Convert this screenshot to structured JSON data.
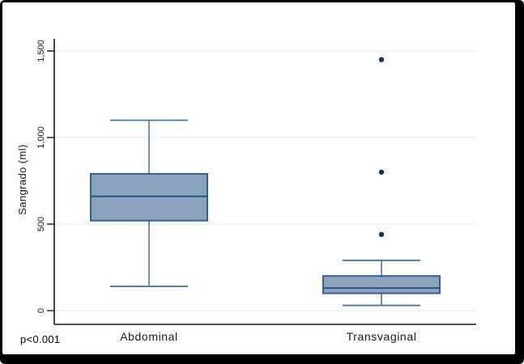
{
  "figure": {
    "background": "#ffffff",
    "frame_color": "#000000",
    "p_value_label": "p<0.001"
  },
  "chart_data": {
    "type": "boxplot",
    "title": "",
    "ylabel": "Sangrado (ml)",
    "xlabel": "",
    "ylim": [
      0,
      1500
    ],
    "yticks": [
      0,
      500,
      1000,
      1500
    ],
    "ytick_labels": [
      "0",
      "500",
      "1,000",
      "1,500"
    ],
    "grid": true,
    "legend": "none",
    "annotation": "p<0.001",
    "categories": [
      "Abdominal",
      "Transvaginal"
    ],
    "series": [
      {
        "name": "Abdominal",
        "whisker_low": 140,
        "q1": 520,
        "median": 660,
        "q3": 790,
        "whisker_high": 1100,
        "outliers": []
      },
      {
        "name": "Transvaginal",
        "whisker_low": 30,
        "q1": 100,
        "median": 130,
        "q3": 200,
        "whisker_high": 290,
        "outliers": [
          440,
          800,
          1450
        ]
      }
    ],
    "colors": {
      "box_fill": "#8ca3bd",
      "box_border": "#35618e",
      "median_line": "#2a5480",
      "whisker": "#4a76a4",
      "outlier": "#17365d",
      "gridline": "#e8f1f8",
      "axis": "#1a1a1a",
      "text": "#000000"
    }
  }
}
